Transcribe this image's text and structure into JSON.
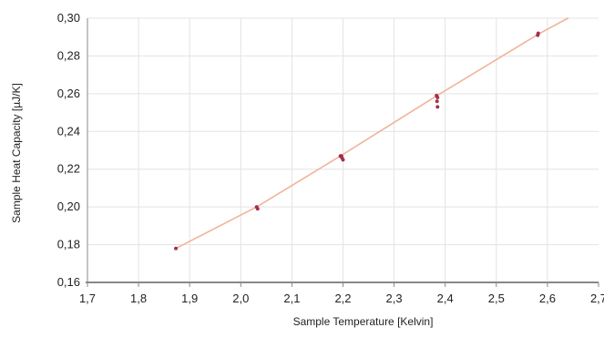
{
  "chart_data": {
    "type": "scatter",
    "title": "",
    "xlabel": "Sample Temperature [Kelvin]",
    "ylabel": "Sample Heat Capacity [µJ/K]",
    "xlim": [
      1.7,
      2.7
    ],
    "ylim": [
      0.16,
      0.3
    ],
    "x_ticks": [
      "1,7",
      "1,8",
      "1,9",
      "2,0",
      "2,1",
      "2,2",
      "2,3",
      "2,4",
      "2,5",
      "2,6",
      "2,7"
    ],
    "y_ticks": [
      "0,16",
      "0,18",
      "0,20",
      "0,22",
      "0,24",
      "0,26",
      "0,28",
      "0,30"
    ],
    "grid": true,
    "legend": "none",
    "colors": {
      "points": "#b0304a",
      "fit_line": "#f0b49a",
      "grid": "#e3e3e3",
      "axis": "#888888"
    },
    "series": [
      {
        "type": "scatter",
        "x": [
          1.873,
          2.031,
          2.033,
          2.195,
          2.197,
          2.198,
          2.2,
          2.383,
          2.384,
          2.385,
          2.385,
          2.581,
          2.582
        ],
        "y": [
          0.178,
          0.2,
          0.199,
          0.227,
          0.227,
          0.226,
          0.225,
          0.259,
          0.256,
          0.253,
          0.258,
          0.291,
          0.292
        ]
      },
      {
        "type": "line",
        "x": [
          1.873,
          2.031,
          2.195,
          2.384,
          2.582,
          2.64
        ],
        "y": [
          0.178,
          0.2,
          0.227,
          0.259,
          0.2915,
          0.3
        ]
      }
    ]
  }
}
